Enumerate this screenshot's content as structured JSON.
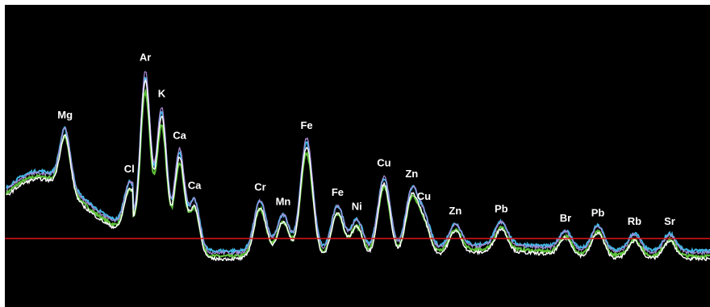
{
  "chart_data": {
    "type": "line",
    "title": "",
    "xlabel": "",
    "ylabel": "",
    "grid": false,
    "legend": "none",
    "colors": {
      "background": "#000000",
      "baseline": "#e0151b",
      "series": [
        "#ffffff",
        "#3fb8e6",
        "#5ec13a",
        "#a98bd6"
      ]
    },
    "baseline_level": 0.2,
    "peaks": [
      {
        "label": "Mg",
        "x": 1.25,
        "height": 0.31
      },
      {
        "label": "Cl",
        "x": 2.62,
        "height": 0.24
      },
      {
        "label": "Ar",
        "x": 2.96,
        "height": 1.0
      },
      {
        "label": "K",
        "x": 3.31,
        "height": 0.8
      },
      {
        "label": "Ca",
        "x": 3.69,
        "height": 0.57
      },
      {
        "label": "Ca",
        "x": 4.01,
        "height": 0.29
      },
      {
        "label": "Cr",
        "x": 5.41,
        "height": 0.29
      },
      {
        "label": "Mn",
        "x": 5.9,
        "height": 0.21
      },
      {
        "label": "Fe",
        "x": 6.4,
        "height": 0.63
      },
      {
        "label": "Fe",
        "x": 7.06,
        "height": 0.26
      },
      {
        "label": "Ni",
        "x": 7.47,
        "height": 0.18
      },
      {
        "label": "Cu",
        "x": 8.05,
        "height": 0.42
      },
      {
        "label": "Zn",
        "x": 8.64,
        "height": 0.33
      },
      {
        "label": "Cu",
        "x": 8.9,
        "height": 0.18
      },
      {
        "label": "Zn",
        "x": 9.57,
        "height": 0.13
      },
      {
        "label": "Pb",
        "x": 10.55,
        "height": 0.13
      },
      {
        "label": "Br",
        "x": 11.92,
        "height": 0.1
      },
      {
        "label": "Pb",
        "x": 12.61,
        "height": 0.14
      },
      {
        "label": "Rb",
        "x": 13.39,
        "height": 0.1
      },
      {
        "label": "Sr",
        "x": 14.14,
        "height": 0.1
      }
    ]
  }
}
